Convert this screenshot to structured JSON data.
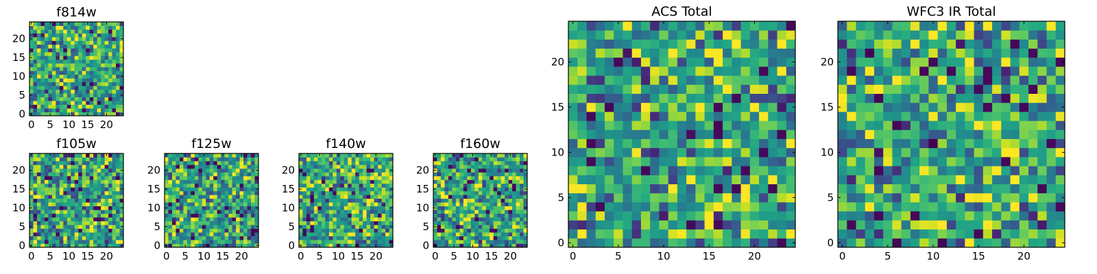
{
  "figure": {
    "background": "#ffffff",
    "colormap": "viridis"
  },
  "chart_data": [
    {
      "type": "heatmap",
      "title": "f814w",
      "grid_size": 25,
      "xlim": [
        0,
        24
      ],
      "ylim": [
        0,
        24
      ],
      "xticks": [
        "0",
        "5",
        "10",
        "15",
        "20"
      ],
      "yticks": [
        "0",
        "5",
        "10",
        "15",
        "20"
      ],
      "seed": 814
    },
    {
      "type": "heatmap",
      "title": "f105w",
      "grid_size": 25,
      "xlim": [
        0,
        24
      ],
      "ylim": [
        0,
        24
      ],
      "xticks": [
        "0",
        "5",
        "10",
        "15",
        "20"
      ],
      "yticks": [
        "0",
        "5",
        "10",
        "15",
        "20"
      ],
      "seed": 105
    },
    {
      "type": "heatmap",
      "title": "f125w",
      "grid_size": 25,
      "xlim": [
        0,
        24
      ],
      "ylim": [
        0,
        24
      ],
      "xticks": [
        "0",
        "5",
        "10",
        "15",
        "20"
      ],
      "yticks": [
        "0",
        "5",
        "10",
        "15",
        "20"
      ],
      "seed": 125
    },
    {
      "type": "heatmap",
      "title": "f140w",
      "grid_size": 25,
      "xlim": [
        0,
        24
      ],
      "ylim": [
        0,
        24
      ],
      "xticks": [
        "0",
        "5",
        "10",
        "15",
        "20"
      ],
      "yticks": [
        "0",
        "5",
        "10",
        "15",
        "20"
      ],
      "seed": 140
    },
    {
      "type": "heatmap",
      "title": "f160w",
      "grid_size": 25,
      "xlim": [
        0,
        24
      ],
      "ylim": [
        0,
        24
      ],
      "xticks": [
        "0",
        "5",
        "10",
        "15",
        "20"
      ],
      "yticks": [
        "0",
        "5",
        "10",
        "15",
        "20"
      ],
      "seed": 160
    },
    {
      "type": "heatmap",
      "title": "ACS Total",
      "grid_size": 25,
      "xlim": [
        0,
        24
      ],
      "ylim": [
        0,
        24
      ],
      "xticks": [
        "0",
        "5",
        "10",
        "15",
        "20"
      ],
      "yticks": [
        "0",
        "5",
        "10",
        "15",
        "20"
      ],
      "seed": 900
    },
    {
      "type": "heatmap",
      "title": "WFC3 IR Total",
      "grid_size": 25,
      "xlim": [
        0,
        24
      ],
      "ylim": [
        0,
        24
      ],
      "xticks": [
        "0",
        "5",
        "10",
        "15",
        "20"
      ],
      "yticks": [
        "0",
        "5",
        "10",
        "15",
        "20"
      ],
      "seed": 901
    }
  ]
}
